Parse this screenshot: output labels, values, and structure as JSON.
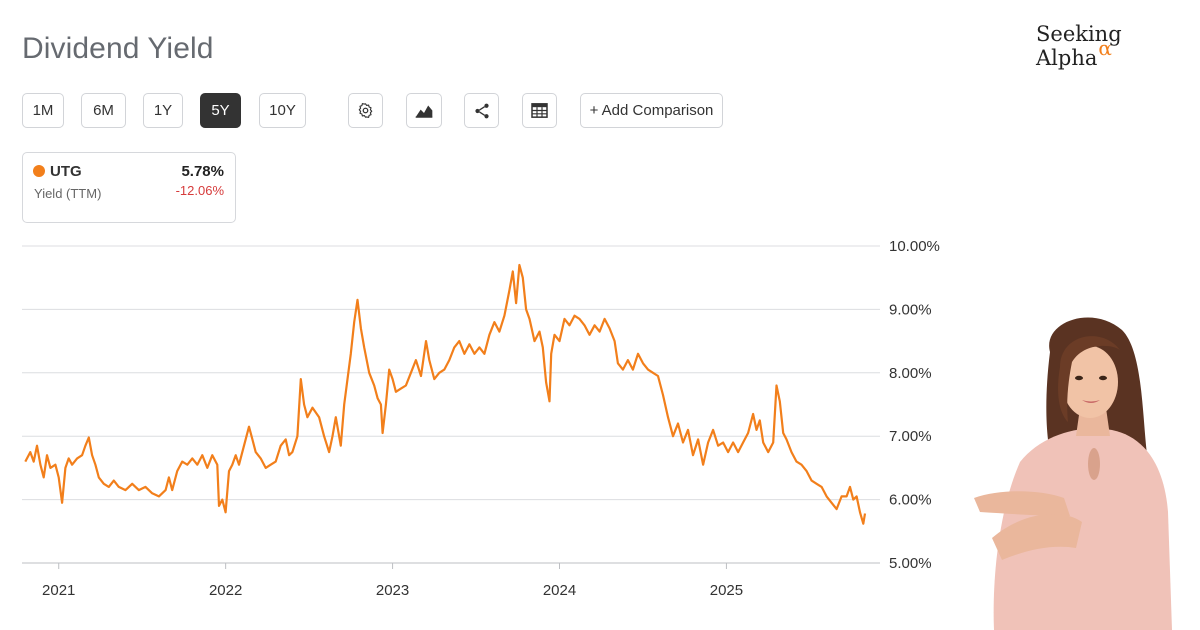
{
  "title": "Dividend Yield",
  "brand": {
    "name": "Seeking Alpha",
    "symbol": "α"
  },
  "toolbar": {
    "ranges": [
      "1M",
      "6M",
      "1Y",
      "5Y",
      "10Y"
    ],
    "active_range": "5Y",
    "icons": [
      "settings-icon",
      "chart-type-icon",
      "share-icon",
      "table-icon"
    ],
    "add_comparison": "+ Add Comparison"
  },
  "legend": {
    "ticker": "UTG",
    "value": "5.78%",
    "label": "Yield (TTM)",
    "change": "-12.06%",
    "color": "#f27f1b",
    "change_color": "#d63b3b"
  },
  "chart_data": {
    "type": "line",
    "title": "",
    "xlabel": "",
    "ylabel": "",
    "x_ticks": [
      "2021",
      "2022",
      "2023",
      "2024",
      "2025"
    ],
    "y_ticks": [
      "10.00%",
      "9.00%",
      "8.00%",
      "7.00%",
      "6.00%",
      "5.00%"
    ],
    "ylim": [
      5.0,
      10.0
    ],
    "xlim": [
      2020.78,
      2025.92
    ],
    "grid": true,
    "series": [
      {
        "name": "UTG",
        "color": "#f27f1b",
        "points": [
          [
            2020.8,
            6.6
          ],
          [
            2020.83,
            6.75
          ],
          [
            2020.85,
            6.6
          ],
          [
            2020.87,
            6.85
          ],
          [
            2020.89,
            6.55
          ],
          [
            2020.91,
            6.35
          ],
          [
            2020.93,
            6.7
          ],
          [
            2020.95,
            6.5
          ],
          [
            2020.98,
            6.55
          ],
          [
            2021.0,
            6.35
          ],
          [
            2021.02,
            5.95
          ],
          [
            2021.04,
            6.5
          ],
          [
            2021.06,
            6.65
          ],
          [
            2021.08,
            6.55
          ],
          [
            2021.11,
            6.65
          ],
          [
            2021.14,
            6.7
          ],
          [
            2021.16,
            6.85
          ],
          [
            2021.18,
            6.98
          ],
          [
            2021.2,
            6.7
          ],
          [
            2021.22,
            6.55
          ],
          [
            2021.24,
            6.35
          ],
          [
            2021.27,
            6.25
          ],
          [
            2021.3,
            6.2
          ],
          [
            2021.33,
            6.3
          ],
          [
            2021.36,
            6.2
          ],
          [
            2021.4,
            6.15
          ],
          [
            2021.44,
            6.25
          ],
          [
            2021.48,
            6.15
          ],
          [
            2021.52,
            6.2
          ],
          [
            2021.56,
            6.1
          ],
          [
            2021.6,
            6.05
          ],
          [
            2021.64,
            6.15
          ],
          [
            2021.66,
            6.35
          ],
          [
            2021.68,
            6.15
          ],
          [
            2021.71,
            6.45
          ],
          [
            2021.74,
            6.6
          ],
          [
            2021.77,
            6.55
          ],
          [
            2021.8,
            6.65
          ],
          [
            2021.83,
            6.55
          ],
          [
            2021.86,
            6.7
          ],
          [
            2021.89,
            6.5
          ],
          [
            2021.92,
            6.7
          ],
          [
            2021.95,
            6.55
          ],
          [
            2021.96,
            5.9
          ],
          [
            2021.98,
            6.0
          ],
          [
            2022.0,
            5.8
          ],
          [
            2022.02,
            6.45
          ],
          [
            2022.04,
            6.55
          ],
          [
            2022.06,
            6.7
          ],
          [
            2022.08,
            6.55
          ],
          [
            2022.11,
            6.85
          ],
          [
            2022.14,
            7.15
          ],
          [
            2022.16,
            6.95
          ],
          [
            2022.18,
            6.75
          ],
          [
            2022.21,
            6.65
          ],
          [
            2022.24,
            6.5
          ],
          [
            2022.27,
            6.55
          ],
          [
            2022.3,
            6.6
          ],
          [
            2022.33,
            6.85
          ],
          [
            2022.36,
            6.95
          ],
          [
            2022.38,
            6.7
          ],
          [
            2022.4,
            6.75
          ],
          [
            2022.43,
            7.0
          ],
          [
            2022.45,
            7.9
          ],
          [
            2022.47,
            7.5
          ],
          [
            2022.49,
            7.3
          ],
          [
            2022.52,
            7.45
          ],
          [
            2022.56,
            7.3
          ],
          [
            2022.59,
            7.0
          ],
          [
            2022.62,
            6.75
          ],
          [
            2022.64,
            7.0
          ],
          [
            2022.66,
            7.3
          ],
          [
            2022.69,
            6.85
          ],
          [
            2022.71,
            7.5
          ],
          [
            2022.73,
            7.9
          ],
          [
            2022.75,
            8.3
          ],
          [
            2022.77,
            8.8
          ],
          [
            2022.79,
            9.15
          ],
          [
            2022.81,
            8.7
          ],
          [
            2022.83,
            8.4
          ],
          [
            2022.86,
            8.0
          ],
          [
            2022.89,
            7.8
          ],
          [
            2022.91,
            7.6
          ],
          [
            2022.93,
            7.5
          ],
          [
            2022.94,
            7.05
          ],
          [
            2022.96,
            7.5
          ],
          [
            2022.98,
            8.05
          ],
          [
            2023.0,
            7.9
          ],
          [
            2023.02,
            7.7
          ],
          [
            2023.05,
            7.75
          ],
          [
            2023.08,
            7.8
          ],
          [
            2023.11,
            8.0
          ],
          [
            2023.14,
            8.2
          ],
          [
            2023.17,
            7.95
          ],
          [
            2023.2,
            8.5
          ],
          [
            2023.22,
            8.2
          ],
          [
            2023.25,
            7.9
          ],
          [
            2023.28,
            8.0
          ],
          [
            2023.31,
            8.05
          ],
          [
            2023.34,
            8.2
          ],
          [
            2023.37,
            8.4
          ],
          [
            2023.4,
            8.5
          ],
          [
            2023.43,
            8.3
          ],
          [
            2023.46,
            8.45
          ],
          [
            2023.49,
            8.3
          ],
          [
            2023.52,
            8.4
          ],
          [
            2023.55,
            8.3
          ],
          [
            2023.58,
            8.6
          ],
          [
            2023.61,
            8.8
          ],
          [
            2023.64,
            8.65
          ],
          [
            2023.67,
            8.9
          ],
          [
            2023.7,
            9.3
          ],
          [
            2023.72,
            9.6
          ],
          [
            2023.74,
            9.1
          ],
          [
            2023.76,
            9.7
          ],
          [
            2023.78,
            9.5
          ],
          [
            2023.8,
            9.0
          ],
          [
            2023.82,
            8.85
          ],
          [
            2023.85,
            8.5
          ],
          [
            2023.88,
            8.65
          ],
          [
            2023.9,
            8.4
          ],
          [
            2023.92,
            7.85
          ],
          [
            2023.94,
            7.55
          ],
          [
            2023.95,
            8.3
          ],
          [
            2023.97,
            8.6
          ],
          [
            2024.0,
            8.5
          ],
          [
            2024.03,
            8.85
          ],
          [
            2024.06,
            8.75
          ],
          [
            2024.09,
            8.9
          ],
          [
            2024.12,
            8.85
          ],
          [
            2024.15,
            8.75
          ],
          [
            2024.18,
            8.6
          ],
          [
            2024.21,
            8.75
          ],
          [
            2024.24,
            8.65
          ],
          [
            2024.27,
            8.85
          ],
          [
            2024.3,
            8.7
          ],
          [
            2024.33,
            8.5
          ],
          [
            2024.35,
            8.15
          ],
          [
            2024.38,
            8.05
          ],
          [
            2024.41,
            8.2
          ],
          [
            2024.44,
            8.05
          ],
          [
            2024.47,
            8.3
          ],
          [
            2024.5,
            8.15
          ],
          [
            2024.53,
            8.05
          ],
          [
            2024.56,
            8.0
          ],
          [
            2024.59,
            7.95
          ],
          [
            2024.62,
            7.65
          ],
          [
            2024.65,
            7.3
          ],
          [
            2024.68,
            7.0
          ],
          [
            2024.71,
            7.2
          ],
          [
            2024.74,
            6.9
          ],
          [
            2024.77,
            7.1
          ],
          [
            2024.8,
            6.7
          ],
          [
            2024.83,
            6.95
          ],
          [
            2024.86,
            6.55
          ],
          [
            2024.89,
            6.9
          ],
          [
            2024.92,
            7.1
          ],
          [
            2024.95,
            6.85
          ],
          [
            2024.98,
            6.9
          ],
          [
            2025.01,
            6.75
          ],
          [
            2025.04,
            6.9
          ],
          [
            2025.07,
            6.75
          ],
          [
            2025.1,
            6.9
          ],
          [
            2025.13,
            7.05
          ],
          [
            2025.16,
            7.35
          ],
          [
            2025.18,
            7.1
          ],
          [
            2025.2,
            7.25
          ],
          [
            2025.22,
            6.9
          ],
          [
            2025.25,
            6.75
          ],
          [
            2025.28,
            6.9
          ],
          [
            2025.3,
            7.8
          ],
          [
            2025.32,
            7.55
          ],
          [
            2025.34,
            7.05
          ],
          [
            2025.36,
            6.95
          ],
          [
            2025.39,
            6.75
          ],
          [
            2025.42,
            6.6
          ],
          [
            2025.45,
            6.55
          ],
          [
            2025.48,
            6.45
          ],
          [
            2025.51,
            6.3
          ],
          [
            2025.54,
            6.25
          ],
          [
            2025.57,
            6.2
          ],
          [
            2025.6,
            6.05
          ],
          [
            2025.63,
            5.95
          ],
          [
            2025.66,
            5.85
          ],
          [
            2025.69,
            6.05
          ],
          [
            2025.72,
            6.05
          ],
          [
            2025.74,
            6.2
          ],
          [
            2025.76,
            6.0
          ],
          [
            2025.78,
            6.05
          ],
          [
            2025.8,
            5.8
          ],
          [
            2025.82,
            5.62
          ],
          [
            2025.83,
            5.78
          ]
        ]
      }
    ]
  }
}
